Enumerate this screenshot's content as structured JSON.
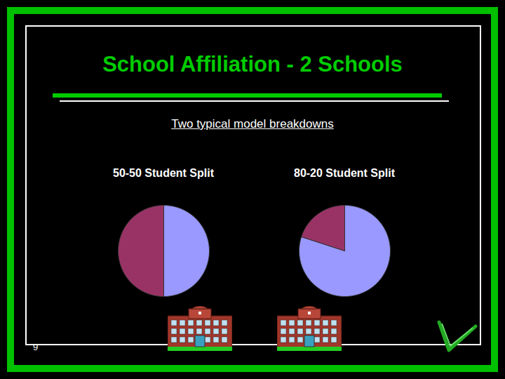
{
  "title": "School Affiliation - 2 Schools",
  "subtitle": "Two typical model breakdowns",
  "page_number": 9,
  "chart_data": [
    {
      "type": "pie",
      "title": "50-50 Student Split",
      "values": [
        50,
        50
      ],
      "colors": [
        "#9999ff",
        "#993366"
      ]
    },
    {
      "type": "pie",
      "title": "80-20 Student Split",
      "values": [
        80,
        20
      ],
      "colors": [
        "#9999ff",
        "#993366"
      ]
    }
  ]
}
